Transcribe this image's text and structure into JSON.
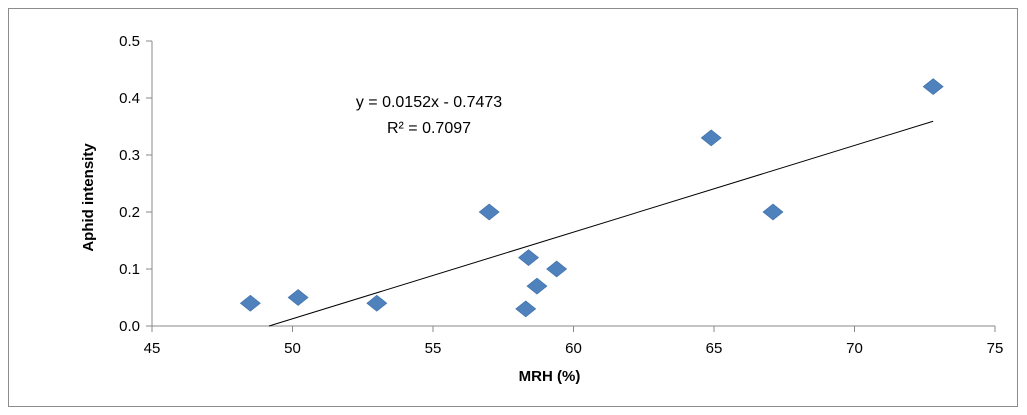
{
  "chart_data": {
    "type": "scatter",
    "title": "",
    "xlabel": "MRH (%)",
    "ylabel": "Aphid intensity",
    "xlim": [
      45,
      75
    ],
    "ylim": [
      0,
      0.5
    ],
    "x_ticks": [
      "45",
      "50",
      "55",
      "60",
      "65",
      "70",
      "75"
    ],
    "y_ticks": [
      "0.0",
      "0.1",
      "0.2",
      "0.3",
      "0.4",
      "0.5"
    ],
    "grid": false,
    "marker_color": "#4F81BD",
    "series": [
      {
        "points": [
          {
            "x": 48.5,
            "y": 0.04
          },
          {
            "x": 50.2,
            "y": 0.05
          },
          {
            "x": 53.0,
            "y": 0.04
          },
          {
            "x": 57.0,
            "y": 0.2
          },
          {
            "x": 58.3,
            "y": 0.03
          },
          {
            "x": 58.4,
            "y": 0.12
          },
          {
            "x": 58.7,
            "y": 0.07
          },
          {
            "x": 59.4,
            "y": 0.1
          },
          {
            "x": 64.9,
            "y": 0.33
          },
          {
            "x": 67.1,
            "y": 0.2
          },
          {
            "x": 72.8,
            "y": 0.42
          }
        ]
      }
    ],
    "trendline": {
      "slope": 0.0152,
      "intercept": -0.7473,
      "x_end": 72.8,
      "equation_label": "y = 0.0152x - 0.7473",
      "r2_label": "R² = 0.7097"
    }
  }
}
